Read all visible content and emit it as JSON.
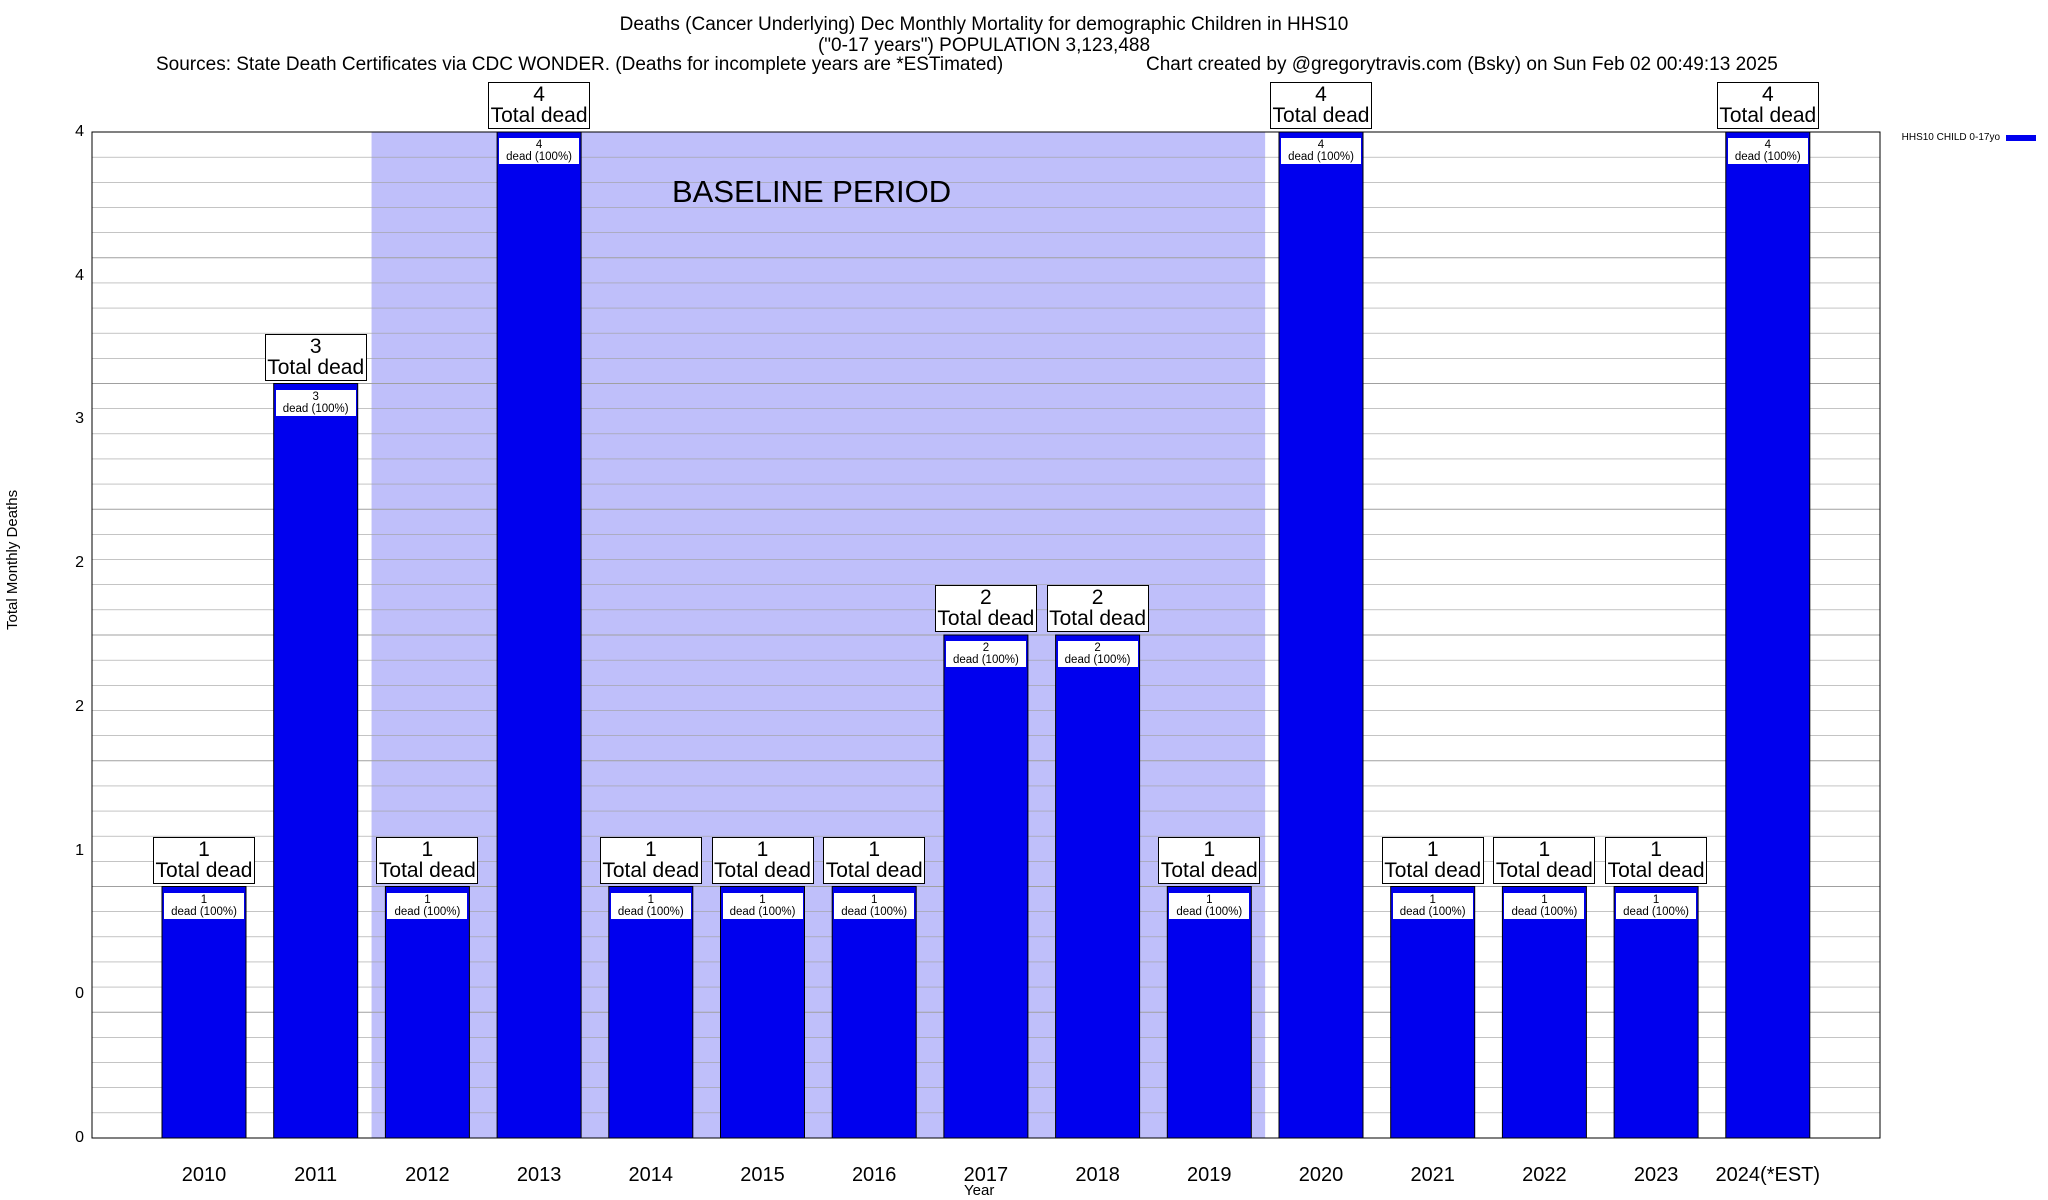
{
  "title": {
    "line1": "Deaths (Cancer Underlying) Dec Monthly Mortality for demographic Children in HHS10",
    "line2": "(\"0-17 years\") POPULATION 3,123,488",
    "sources": "Sources: State Death Certificates via CDC WONDER. (Deaths for incomplete years are *ESTimated)",
    "credit": "Chart created by @gregorytravis.com (Bsky) on Sun Feb 02 00:49:13 2025"
  },
  "legend": {
    "label": "HHS10 CHILD 0-17yo",
    "color": "#0000ee"
  },
  "baseline_label": "BASELINE PERIOD",
  "colors": {
    "bar": "#0000ee",
    "baseline_shade": "#bfbffa",
    "grid": "#a0a0a0"
  },
  "chart_data": {
    "type": "bar",
    "title": "Deaths (Cancer Underlying) Dec Monthly Mortality for demographic Children in HHS10",
    "xlabel": "Year",
    "ylabel": "Total Monthly Deaths",
    "categories": [
      "2010",
      "2011",
      "2012",
      "2013",
      "2014",
      "2015",
      "2016",
      "2017",
      "2018",
      "2019",
      "2020",
      "2021",
      "2022",
      "2023",
      "2024(*EST)"
    ],
    "series": [
      {
        "name": "HHS10 CHILD 0-17yo",
        "values": [
          1,
          3,
          1,
          4,
          1,
          1,
          1,
          2,
          2,
          1,
          4,
          1,
          1,
          1,
          4
        ]
      }
    ],
    "ylim": [
      0,
      4
    ],
    "y_tick_labels": [
      "0",
      "0",
      "1",
      "2",
      "2",
      "3",
      "4",
      "4"
    ],
    "baseline_period": [
      "2012",
      "2019"
    ],
    "bar_total_label": "Total dead",
    "bar_inner_label": "dead (100%)",
    "grid": true,
    "legend_position": "top-right"
  }
}
